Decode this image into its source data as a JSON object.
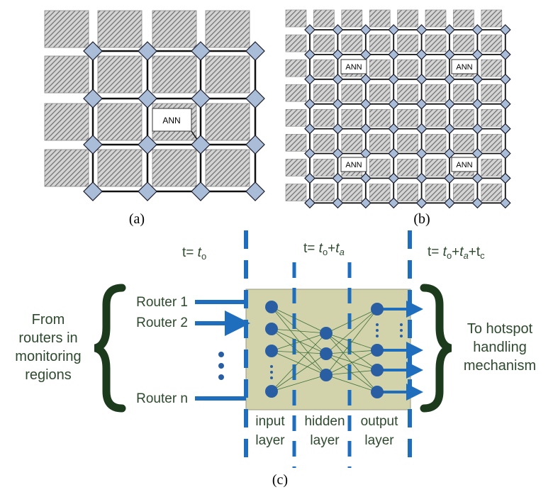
{
  "figure_a": {
    "ann_label": "ANN",
    "caption": "(a)"
  },
  "figure_b": {
    "ann_label": "ANN",
    "caption": "(b)"
  },
  "figure_c": {
    "caption": "(c)",
    "time_labels": {
      "t0": {
        "prefix": "t= ",
        "t": "t",
        "sub": "o"
      },
      "t1": {
        "prefix": "t= ",
        "t1": "t",
        "sub1": "o",
        "plus": "+",
        "t2": "t",
        "sub2": "a"
      },
      "t2": {
        "prefix": "t= ",
        "t1": "t",
        "sub1": "o",
        "plus1": "+",
        "t2": "t",
        "sub2": "a",
        "plus2": "+t",
        "sub3": "c"
      }
    },
    "left_text": [
      "From",
      "routers in",
      "monitoring",
      "regions"
    ],
    "right_text": [
      "To hotspot",
      "handling",
      "mechanism"
    ],
    "routers": [
      "Router 1",
      "Router 2",
      "Router n"
    ],
    "layers": {
      "input": [
        "input",
        "layer"
      ],
      "hidden": [
        "hidden",
        "layer"
      ],
      "output": [
        "output",
        "layer"
      ]
    }
  },
  "colors": {
    "tile": "#a9a9a9",
    "router": "#a9bdd8",
    "dashed_line": "#1f6ebe",
    "ann_box": "#d2d3aa",
    "neuron": "#2a5ea3",
    "text_green": "#2e4a2e",
    "brace": "#1c3a1c"
  }
}
